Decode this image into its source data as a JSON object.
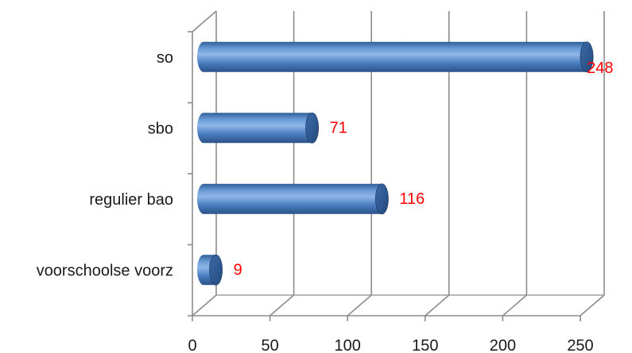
{
  "chart_data": {
    "type": "bar",
    "orientation": "horizontal",
    "style": "3d-cylinder",
    "categories": [
      "so",
      "sbo",
      "regulier bao",
      "voorschoolse voorz"
    ],
    "values": [
      248,
      71,
      116,
      9
    ],
    "xlim": [
      0,
      250
    ],
    "xticks": [
      0,
      50,
      100,
      150,
      200,
      250
    ],
    "title": "",
    "xlabel": "",
    "ylabel": "",
    "grid": true,
    "legend": "none",
    "colors": {
      "bar": "#4f81bd",
      "bar_dark": "#2c5a91",
      "bar_light": "#9dbde6",
      "data_label": "#ff0000",
      "grid": "#8c8c8c"
    }
  }
}
